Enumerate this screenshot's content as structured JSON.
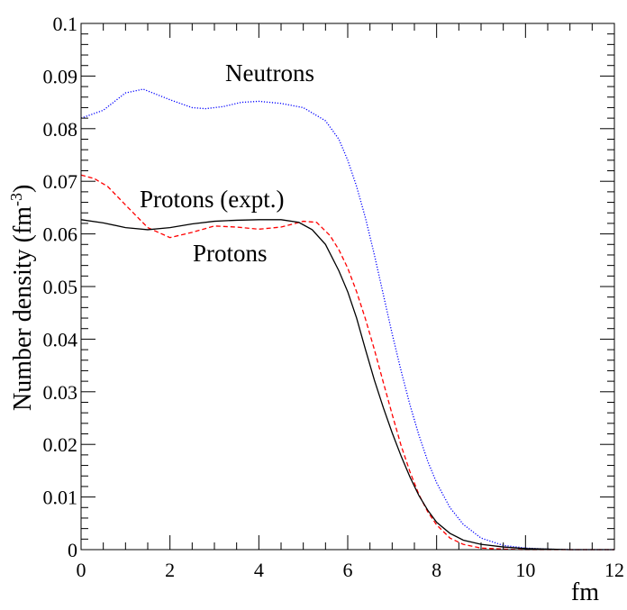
{
  "chart_data": {
    "type": "line",
    "title": "",
    "xlabel": "fm",
    "ylabel": "Number density (fm",
    "ylabel_superscript": "-3",
    "ylabel_close": ")",
    "xlim": [
      0,
      12
    ],
    "ylim": [
      0,
      0.1
    ],
    "x_ticks": [
      0,
      2,
      4,
      6,
      8,
      10,
      12
    ],
    "x_tick_labels": [
      "0",
      "2",
      "4",
      "6",
      "8",
      "10",
      "12"
    ],
    "y_ticks": [
      0,
      0.01,
      0.02,
      0.03,
      0.04,
      0.05,
      0.06,
      0.07,
      0.08,
      0.09,
      0.1
    ],
    "y_tick_labels": [
      "0",
      "0.01",
      "0.02",
      "0.03",
      "0.04",
      "0.05",
      "0.06",
      "0.07",
      "0.08",
      "0.09",
      "0.1"
    ],
    "grid": false,
    "annotations": [
      "Neutrons",
      "Protons (expt.)",
      "Protons"
    ],
    "series": [
      {
        "name": "Neutrons",
        "color": "#0000ff",
        "style": "dotted",
        "x": [
          0,
          0.5,
          1.0,
          1.4,
          2.0,
          2.5,
          2.8,
          3.2,
          3.6,
          4.0,
          4.5,
          5.0,
          5.5,
          5.8,
          6.0,
          6.2,
          6.4,
          6.6,
          6.8,
          7.0,
          7.2,
          7.4,
          7.6,
          7.8,
          8.0,
          8.3,
          8.6,
          9.0,
          9.5,
          10,
          10.5,
          11,
          11.5,
          12
        ],
        "y": [
          0.082,
          0.0835,
          0.0868,
          0.0875,
          0.0855,
          0.084,
          0.0838,
          0.0842,
          0.085,
          0.0852,
          0.0848,
          0.084,
          0.0815,
          0.078,
          0.074,
          0.069,
          0.063,
          0.056,
          0.0485,
          0.041,
          0.034,
          0.0275,
          0.0218,
          0.0168,
          0.0127,
          0.008,
          0.0048,
          0.0022,
          0.0008,
          0.0003,
          0.0001,
          0.0,
          0.0,
          0.0
        ]
      },
      {
        "name": "Protons (expt.)",
        "color": "#ff0000",
        "style": "dashed",
        "x": [
          0,
          0.3,
          0.6,
          1.0,
          1.5,
          2.0,
          2.5,
          3.0,
          3.5,
          4.0,
          4.5,
          5.0,
          5.3,
          5.6,
          5.8,
          6.0,
          6.2,
          6.4,
          6.6,
          6.8,
          7.0,
          7.2,
          7.4,
          7.6,
          7.8,
          8.0,
          8.3,
          8.6,
          9.0,
          9.5,
          10,
          11,
          12
        ],
        "y": [
          0.0712,
          0.0705,
          0.069,
          0.0655,
          0.0612,
          0.0593,
          0.0603,
          0.0615,
          0.0613,
          0.0609,
          0.0613,
          0.0624,
          0.0622,
          0.0597,
          0.057,
          0.0535,
          0.049,
          0.0438,
          0.038,
          0.0318,
          0.0257,
          0.0198,
          0.0148,
          0.0105,
          0.0072,
          0.0047,
          0.0022,
          0.001,
          0.0003,
          0.0001,
          0.0,
          0.0,
          0.0
        ]
      },
      {
        "name": "Protons",
        "color": "#000000",
        "style": "solid",
        "x": [
          0,
          0.5,
          1.0,
          1.5,
          2.0,
          2.5,
          3.0,
          3.5,
          4.0,
          4.5,
          4.9,
          5.2,
          5.5,
          5.8,
          6.0,
          6.2,
          6.4,
          6.6,
          6.8,
          7.0,
          7.2,
          7.4,
          7.6,
          7.8,
          8.0,
          8.3,
          8.6,
          9.0,
          9.5,
          10,
          10.5,
          11,
          12
        ],
        "y": [
          0.0627,
          0.0621,
          0.0612,
          0.0608,
          0.0612,
          0.0619,
          0.0624,
          0.0626,
          0.0627,
          0.0627,
          0.0622,
          0.0608,
          0.058,
          0.053,
          0.049,
          0.044,
          0.038,
          0.0322,
          0.027,
          0.0222,
          0.0178,
          0.0138,
          0.0103,
          0.0075,
          0.0052,
          0.0031,
          0.0018,
          0.001,
          0.0005,
          0.0002,
          0.0001,
          0.0,
          0.0
        ]
      }
    ]
  }
}
